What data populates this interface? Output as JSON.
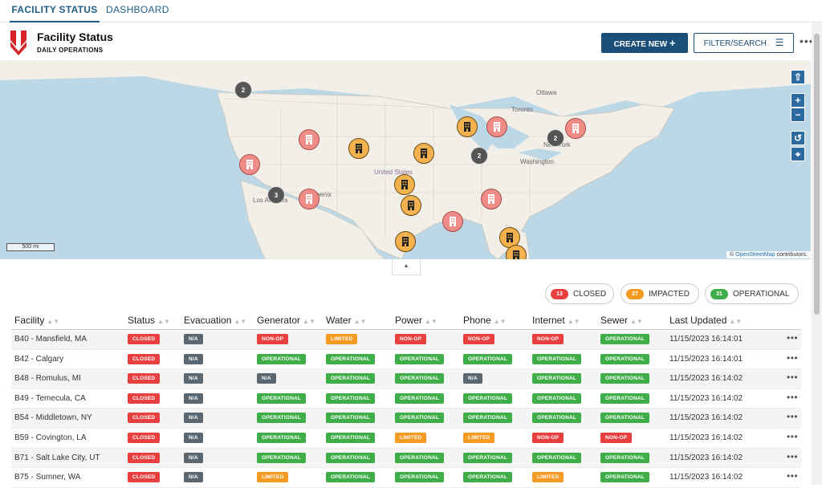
{
  "nav": {
    "tabs": [
      "FACILITY STATUS",
      "DASHBOARD"
    ]
  },
  "header": {
    "title": "Facility Status",
    "subtitle": "DAILY OPERATIONS",
    "create_label": "CREATE NEW",
    "filter_label": "FILTER/SEARCH"
  },
  "map": {
    "labels": {
      "ottawa": "Ottawa",
      "toronto": "Toronto",
      "newyork": "New York",
      "washington": "Washington",
      "us": "United States",
      "la": "Los Angeles",
      "phoenix": "Phoenix"
    },
    "scale": "500 mi",
    "attribution": {
      "prefix": "©",
      "link": "OpenStreetMap",
      "suffix": "contributors."
    },
    "clusters": [
      "2",
      "2",
      "2",
      "3"
    ]
  },
  "legend": {
    "closed": {
      "count": "13",
      "label": "CLOSED",
      "color": "#e8403e"
    },
    "impacted": {
      "count": "27",
      "label": "IMPACTED",
      "color": "#f59a23"
    },
    "operational": {
      "count": "31",
      "label": "OPERATIONAL",
      "color": "#3fae48"
    }
  },
  "table": {
    "headers": [
      "Facility",
      "Status",
      "Evacuation",
      "Generator",
      "Water",
      "Power",
      "Phone",
      "Internet",
      "Sewer",
      "Last Updated"
    ],
    "rows": [
      {
        "facility": "B40 - Mansfield, MA",
        "status": "CLOSED",
        "evac": "N/A",
        "gen": "NON-OP",
        "water": "LIMITED",
        "power": "NON-OP",
        "phone": "NON-OP",
        "internet": "NON-OP",
        "sewer": "OPERATIONAL",
        "updated": "11/15/2023 16:14:01"
      },
      {
        "facility": "B42 - Calgary",
        "status": "CLOSED",
        "evac": "N/A",
        "gen": "OPERATIONAL",
        "water": "OPERATIONAL",
        "power": "OPERATIONAL",
        "phone": "OPERATIONAL",
        "internet": "OPERATIONAL",
        "sewer": "OPERATIONAL",
        "updated": "11/15/2023 16:14:01"
      },
      {
        "facility": "B48 - Romulus, MI",
        "status": "CLOSED",
        "evac": "N/A",
        "gen": "N/A",
        "water": "OPERATIONAL",
        "power": "OPERATIONAL",
        "phone": "N/A",
        "internet": "OPERATIONAL",
        "sewer": "OPERATIONAL",
        "updated": "11/15/2023 16:14:02"
      },
      {
        "facility": "B49 - Temecula, CA",
        "status": "CLOSED",
        "evac": "N/A",
        "gen": "OPERATIONAL",
        "water": "OPERATIONAL",
        "power": "OPERATIONAL",
        "phone": "OPERATIONAL",
        "internet": "OPERATIONAL",
        "sewer": "OPERATIONAL",
        "updated": "11/15/2023 16:14:02"
      },
      {
        "facility": "B54 - Middletown, NY",
        "status": "CLOSED",
        "evac": "N/A",
        "gen": "OPERATIONAL",
        "water": "OPERATIONAL",
        "power": "OPERATIONAL",
        "phone": "OPERATIONAL",
        "internet": "OPERATIONAL",
        "sewer": "OPERATIONAL",
        "updated": "11/15/2023 16:14:02"
      },
      {
        "facility": "B59 - Covington, LA",
        "status": "CLOSED",
        "evac": "N/A",
        "gen": "OPERATIONAL",
        "water": "OPERATIONAL",
        "power": "LIMITED",
        "phone": "LIMITED",
        "internet": "NON-OP",
        "sewer": "NON-OP",
        "updated": "11/15/2023 16:14:02"
      },
      {
        "facility": "B71 - Salt Lake City, UT",
        "status": "CLOSED",
        "evac": "N/A",
        "gen": "OPERATIONAL",
        "water": "OPERATIONAL",
        "power": "OPERATIONAL",
        "phone": "OPERATIONAL",
        "internet": "OPERATIONAL",
        "sewer": "OPERATIONAL",
        "updated": "11/15/2023 16:14:02"
      },
      {
        "facility": "B75 - Sumner, WA",
        "status": "CLOSED",
        "evac": "N/A",
        "gen": "LIMITED",
        "water": "OPERATIONAL",
        "power": "OPERATIONAL",
        "phone": "OPERATIONAL",
        "internet": "LIMITED",
        "sewer": "OPERATIONAL",
        "updated": "11/15/2023 16:14:02"
      }
    ]
  }
}
